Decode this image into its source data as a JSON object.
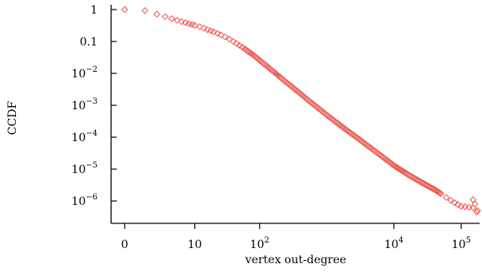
{
  "chart_data": {
    "type": "scatter",
    "title": "",
    "xlabel": "vertex out-degree",
    "ylabel": "CCDF",
    "x_scale": "symlog",
    "y_scale": "log",
    "xlim": [
      0,
      200000
    ],
    "ylim": [
      5e-07,
      1.5
    ],
    "marker": "diamond",
    "color": "#e8574f",
    "grid": false,
    "x_ticks": [
      {
        "value": 0,
        "base": "0",
        "exp": ""
      },
      {
        "value": 10,
        "base": "10",
        "exp": ""
      },
      {
        "value": 100,
        "base": "10",
        "exp": "2"
      },
      {
        "value": 10000,
        "base": "10",
        "exp": "4"
      },
      {
        "value": 100000,
        "base": "10",
        "exp": "5"
      }
    ],
    "y_ticks": [
      {
        "value": 1,
        "base": "1",
        "exp": ""
      },
      {
        "value": 0.1,
        "base": "0.1",
        "exp": ""
      },
      {
        "value": 0.01,
        "base": "10",
        "exp": "−2"
      },
      {
        "value": 0.001,
        "base": "10",
        "exp": "−3"
      },
      {
        "value": 0.0001,
        "base": "10",
        "exp": "−4"
      },
      {
        "value": 1e-05,
        "base": "10",
        "exp": "−5"
      },
      {
        "value": 1e-06,
        "base": "10",
        "exp": "−6"
      }
    ],
    "series": [
      {
        "points": [
          [
            0,
            1.0
          ],
          [
            1,
            0.93
          ],
          [
            2,
            0.72
          ],
          [
            3,
            0.6
          ],
          [
            4,
            0.52
          ],
          [
            5,
            0.46
          ],
          [
            6,
            0.42
          ],
          [
            7,
            0.39
          ],
          [
            8,
            0.36
          ],
          [
            9,
            0.34
          ],
          [
            10,
            0.32
          ],
          [
            12,
            0.29
          ],
          [
            14,
            0.26
          ],
          [
            16,
            0.235
          ],
          [
            18,
            0.215
          ],
          [
            20,
            0.2
          ],
          [
            23,
            0.18
          ],
          [
            26,
            0.16
          ],
          [
            30,
            0.14
          ],
          [
            35,
            0.118
          ],
          [
            40,
            0.1
          ],
          [
            45,
            0.087
          ],
          [
            50,
            0.075
          ],
          [
            60,
            0.058
          ],
          [
            70,
            0.046
          ],
          [
            80,
            0.038
          ],
          [
            90,
            0.031
          ],
          [
            100,
            0.026
          ],
          [
            120,
            0.019
          ],
          [
            140,
            0.0145
          ],
          [
            170,
            0.0105
          ],
          [
            200,
            0.0078
          ],
          [
            250,
            0.0053
          ],
          [
            300,
            0.0039
          ],
          [
            400,
            0.0024
          ],
          [
            500,
            0.0016
          ],
          [
            600,
            0.00118
          ],
          [
            800,
            0.00073
          ],
          [
            1000,
            0.0005
          ],
          [
            1500,
            0.00026
          ],
          [
            2000,
            0.000165
          ],
          [
            3000,
            8.8e-05
          ],
          [
            5000,
            3.9e-05
          ],
          [
            7000,
            2.3e-05
          ],
          [
            10000,
            1.3e-05
          ],
          [
            15000,
            7.5e-06
          ],
          [
            20000,
            5.2e-06
          ],
          [
            30000,
            3.2e-06
          ],
          [
            40000,
            2.3e-06
          ],
          [
            50000,
            1.7e-06
          ],
          [
            60000,
            1.3e-06
          ],
          [
            70000,
            1.05e-06
          ],
          [
            80000,
            8.8e-07
          ],
          [
            100000,
            6.8e-07
          ],
          [
            150000,
            6.2e-07
          ],
          [
            170000,
            4.5e-07
          ]
        ]
      }
    ]
  }
}
